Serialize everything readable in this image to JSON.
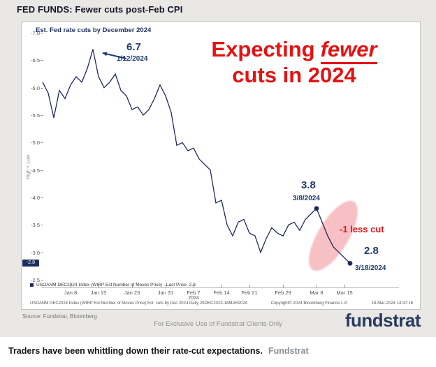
{
  "page": {
    "title": "FED FUNDS: Fewer cuts post-Feb CPI",
    "source_note": "Source: Fundstrat, Bloomberg",
    "exclusive_note": "For Exclusive Use of Fundstrat Clients Only",
    "logo": "fundstrat",
    "footer_caption": "Traders have been whittling down their rate-cut expectations.",
    "footer_brand": "Fundstrat"
  },
  "chart": {
    "inner_title": "Est. Fed rate cuts by December 2024",
    "headline": {
      "pre": "Expecting",
      "em": "fewer",
      "line2": "cuts in 2024"
    },
    "annotations": {
      "peak_value": "6.7",
      "peak_date": "1/12/2024",
      "mar8_value": "3.8",
      "mar8_date": "3/8/2024",
      "last_value": "2.8",
      "last_date": "3/18/2024",
      "less_cut": "-1 less cut"
    },
    "axis_box_last": "-2.8",
    "y_axis_title": "High < Low",
    "legend_text": "USOANM DEC2024 Index (WIRP Est Number of Moves Price) - Last Price -2.8",
    "fineprint_left": "USOANM DEC2024 Index (WIRP Est Number of Moves Price) Est. cuts by Dec 2024 Daily 29DEC2023-18MAR2024",
    "fineprint_mid": "Copyright© 2024 Bloomberg Finance L.P.",
    "fineprint_right": "18-Mar-2024 14:47:16",
    "colors": {
      "line": "#1f2a5c",
      "accent_red": "#e41212",
      "annotation_blue": "#1f3a70",
      "highlight_pink": "rgba(240,140,150,0.55)",
      "last_box_bg": "#1c2d5e"
    }
  },
  "chart_data": {
    "type": "line",
    "title": "Est. Fed rate cuts by December 2024",
    "ylim_top": -7.0,
    "ylim_bottom": -2.5,
    "y_ticks": [
      "-7.0",
      "-6.5",
      "-6.0",
      "-5.5",
      "-5.0",
      "-4.5",
      "-4.0",
      "-3.5",
      "-3.0",
      "-2.5"
    ],
    "x_tick_labels": [
      "Jan 8",
      "Jan 15",
      "Jan 23",
      "Jan 31",
      "Feb 7",
      "Feb 14",
      "Feb 21",
      "Feb 29",
      "Mar 8",
      "Mar 15"
    ],
    "x_tick_indices": [
      5,
      10,
      16,
      22,
      27,
      32,
      37,
      43,
      49,
      54
    ],
    "x_year_label": "2024",
    "x_year_index": 27,
    "values": [
      -6.1,
      -5.9,
      -5.45,
      -5.95,
      -5.8,
      -6.05,
      -6.2,
      -6.1,
      -6.35,
      -6.7,
      -6.2,
      -6.0,
      -6.1,
      -6.25,
      -5.95,
      -5.85,
      -5.6,
      -5.65,
      -5.5,
      -5.6,
      -5.8,
      -6.05,
      -5.85,
      -5.55,
      -4.95,
      -5.0,
      -4.85,
      -4.9,
      -4.7,
      -4.6,
      -4.5,
      -3.9,
      -3.95,
      -3.5,
      -3.3,
      -3.55,
      -3.6,
      -3.35,
      -3.3,
      -3.0,
      -3.25,
      -3.45,
      -3.35,
      -3.3,
      -3.5,
      -3.55,
      -3.4,
      -3.6,
      -3.7,
      -3.8,
      -3.55,
      -3.3,
      -3.1,
      -3.0,
      -2.9,
      -2.8
    ],
    "last_price": -2.8,
    "annotated_points": [
      {
        "index": 9,
        "value": -6.7,
        "label": "6.7 on 1/12/2024"
      }
    ],
    "highlight_points": [
      {
        "index": 49,
        "value": -3.8,
        "label": "3.8 on 3/8/2024"
      },
      {
        "index": 55,
        "value": -2.8,
        "label": "2.8 on 3/18/2024"
      }
    ]
  }
}
